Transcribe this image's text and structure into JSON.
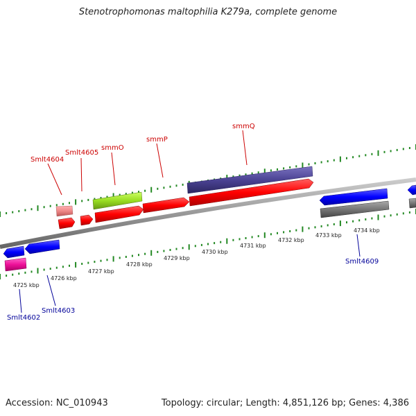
{
  "title": "Stenotrophomonas maltophilia K279a, complete genome",
  "accession": "Accession: NC_010943",
  "summary": "Topology: circular; Length: 4,851,126 bp; Genes: 4,386",
  "scale_labels": [
    "4725 kbp",
    "4726 kbp",
    "4727 kbp",
    "4728 kbp",
    "4729 kbp",
    "4730 kbp",
    "4731 kbp",
    "4732 kbp",
    "4733 kbp",
    "4734 kbp"
  ],
  "gene_labels": {
    "smlt4604": "Smlt4604",
    "smlt4605": "Smlt4605",
    "smmO": "smmO",
    "smmP": "smmP",
    "smmQ": "smmQ",
    "smlt4602": "Smlt4602",
    "smlt4603": "Smlt4603",
    "smlt4609": "Smlt4609"
  },
  "colors": {
    "forward_cds": "#ff0000",
    "reverse_cds": "#0000ff",
    "cog_purple": "#4b4394",
    "cog_green": "#99dd22",
    "cog_pink": "#ee8888",
    "cog_magenta": "#ee1199",
    "cog_gray": "#777777",
    "tick_green": "#228822",
    "backbone": "#999999"
  }
}
